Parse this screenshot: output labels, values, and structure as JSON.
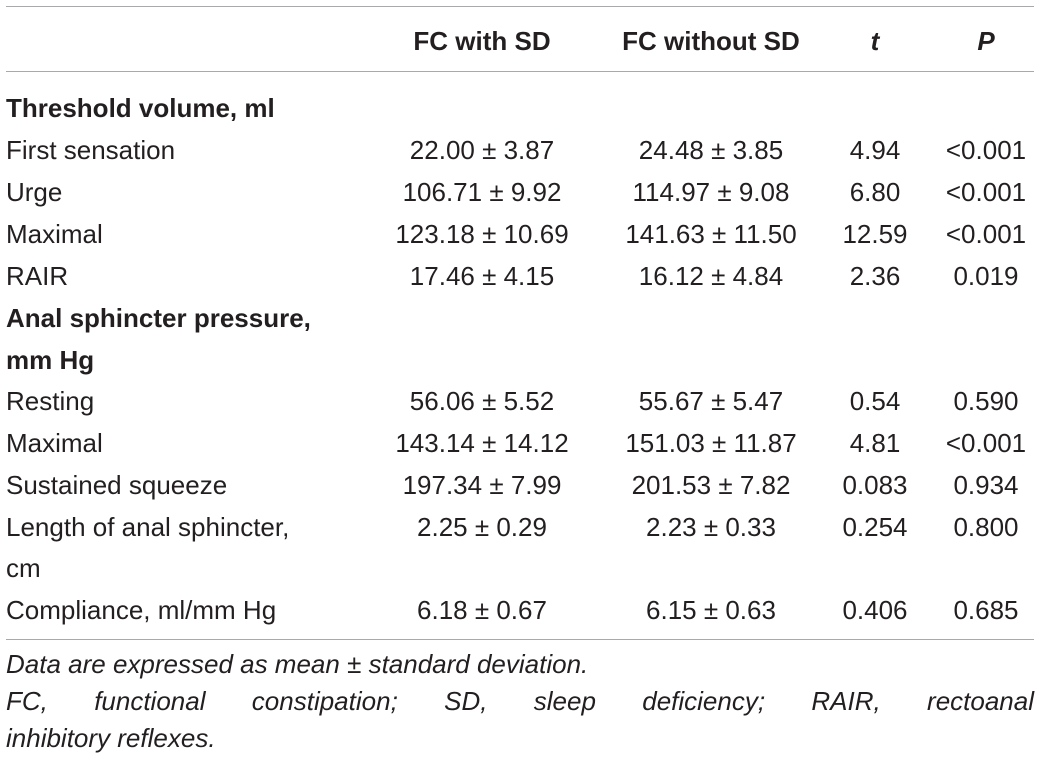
{
  "header": {
    "label": "",
    "with_sd": "FC with SD",
    "without_sd": "FC without SD",
    "t": "t",
    "p": "P"
  },
  "sections": [
    {
      "title": "Threshold volume, ml",
      "rows": [
        {
          "label": "First sensation",
          "with_sd": "22.00 ± 3.87",
          "without_sd": "24.48 ± 3.85",
          "t": "4.94",
          "p": "<0.001"
        },
        {
          "label": "Urge",
          "with_sd": "106.71 ± 9.92",
          "without_sd": "114.97 ± 9.08",
          "t": "6.80",
          "p": "<0.001"
        },
        {
          "label": "Maximal",
          "with_sd": "123.18 ± 10.69",
          "without_sd": "141.63 ± 11.50",
          "t": "12.59",
          "p": "<0.001"
        },
        {
          "label": "RAIR",
          "with_sd": "17.46 ± 4.15",
          "without_sd": "16.12 ± 4.84",
          "t": "2.36",
          "p": "0.019"
        }
      ]
    },
    {
      "title_line1": "Anal sphincter pressure,",
      "title_line2": "mm Hg",
      "rows": [
        {
          "label": "Resting",
          "with_sd": "56.06 ± 5.52",
          "without_sd": "55.67 ± 5.47",
          "t": "0.54",
          "p": "0.590"
        },
        {
          "label": "Maximal",
          "with_sd": "143.14 ± 14.12",
          "without_sd": "151.03 ± 11.87",
          "t": "4.81",
          "p": "<0.001"
        },
        {
          "label": "Sustained squeeze",
          "with_sd": "197.34 ± 7.99",
          "without_sd": "201.53 ± 7.82",
          "t": "0.083",
          "p": "0.934"
        }
      ]
    }
  ],
  "extra_rows": [
    {
      "label_line1": "Length of anal sphincter,",
      "label_line2": "cm",
      "with_sd": "2.25 ± 0.29",
      "without_sd": "2.23 ± 0.33",
      "t": "0.254",
      "p": "0.800"
    },
    {
      "label": "Compliance, ml/mm Hg",
      "with_sd": "6.18 ± 0.67",
      "without_sd": "6.15 ± 0.63",
      "t": "0.406",
      "p": "0.685"
    }
  ],
  "footnotes": {
    "line1": "Data are expressed as mean ± standard deviation.",
    "line2": "FC, functional constipation; SD, sleep deficiency; RAIR, rectoanal",
    "line3": "inhibitory reflexes."
  }
}
